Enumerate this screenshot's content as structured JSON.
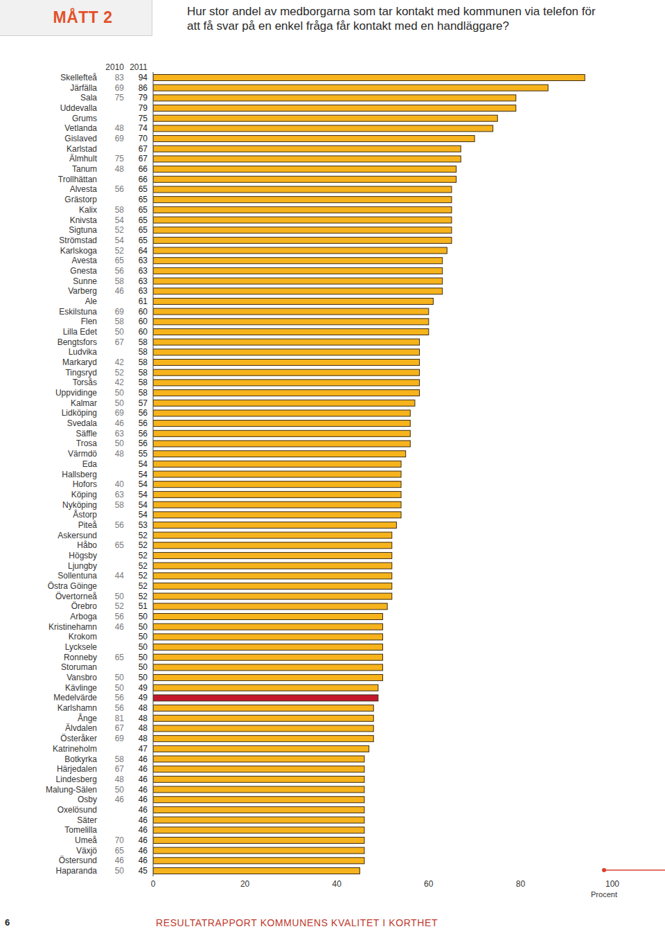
{
  "chart_data": {
    "type": "bar",
    "orientation": "horizontal",
    "title": "Hur stor andel av medborgarna som tar kontakt med kommunen via telefon för att få svar på en enkel fråga får kontakt med en handläggare?",
    "xlabel": "Procent",
    "categories": [
      "Skellefteå",
      "Järfälla",
      "Sala",
      "Uddevalla",
      "Grums",
      "Vetlanda",
      "Gislaved",
      "Karlstad",
      "Älmhult",
      "Tanum",
      "Trollhättan",
      "Alvesta",
      "Grästorp",
      "Kalix",
      "Knivsta",
      "Sigtuna",
      "Strömstad",
      "Karlskoga",
      "Avesta",
      "Gnesta",
      "Sunne",
      "Varberg",
      "Ale",
      "Eskilstuna",
      "Flen",
      "Lilla Edet",
      "Bengtsfors",
      "Ludvika",
      "Markaryd",
      "Tingsryd",
      "Torsås",
      "Uppvidinge",
      "Kalmar",
      "Lidköping",
      "Svedala",
      "Säffle",
      "Trosa",
      "Värmdö",
      "Eda",
      "Hallsberg",
      "Hofors",
      "Köping",
      "Nyköping",
      "Åstorp",
      "Piteå",
      "Askersund",
      "Håbo",
      "Högsby",
      "Ljungby",
      "Sollentuna",
      "Östra Göinge",
      "Övertorneå",
      "Örebro",
      "Arboga",
      "Kristinehamn",
      "Krokom",
      "Lycksele",
      "Ronneby",
      "Storuman",
      "Vansbro",
      "Kävlinge",
      "Medelvärde",
      "Karlshamn",
      "Ånge",
      "Älvdalen",
      "Österåker",
      "Katrineholm",
      "Botkyrka",
      "Härjedalen",
      "Lindesberg",
      "Malung-Sälen",
      "Osby",
      "Oxelösund",
      "Säter",
      "Tomelilla",
      "Umeå",
      "Växjö",
      "Östersund",
      "Haparanda"
    ],
    "series": [
      {
        "name": "2010",
        "type": "text",
        "values": [
          83,
          69,
          75,
          null,
          null,
          48,
          69,
          null,
          75,
          48,
          null,
          56,
          null,
          58,
          54,
          52,
          54,
          52,
          65,
          56,
          58,
          46,
          null,
          69,
          58,
          50,
          67,
          null,
          42,
          52,
          42,
          50,
          50,
          69,
          46,
          63,
          50,
          48,
          null,
          null,
          40,
          63,
          58,
          null,
          56,
          null,
          65,
          null,
          null,
          44,
          null,
          50,
          52,
          56,
          46,
          null,
          null,
          65,
          null,
          50,
          50,
          56,
          56,
          81,
          67,
          69,
          null,
          58,
          67,
          48,
          50,
          46,
          null,
          null,
          null,
          70,
          65,
          46,
          50
        ]
      },
      {
        "name": "2011",
        "type": "bar",
        "values": [
          94,
          86,
          79,
          79,
          75,
          74,
          70,
          67,
          67,
          66,
          66,
          65,
          65,
          65,
          65,
          65,
          65,
          64,
          63,
          63,
          63,
          63,
          61,
          60,
          60,
          60,
          58,
          58,
          58,
          58,
          58,
          58,
          57,
          56,
          56,
          56,
          56,
          55,
          54,
          54,
          54,
          54,
          54,
          54,
          53,
          52,
          52,
          52,
          52,
          52,
          52,
          52,
          51,
          50,
          50,
          50,
          50,
          50,
          50,
          50,
          49,
          49,
          48,
          48,
          48,
          48,
          47,
          46,
          46,
          46,
          46,
          46,
          46,
          46,
          46,
          46,
          46,
          46,
          45
        ],
        "colors": [
          "#f6b31c",
          "#f6b31c",
          "#f6b31c",
          "#f6b31c",
          "#f6b31c",
          "#f6b31c",
          "#f6b31c",
          "#f6b31c",
          "#f6b31c",
          "#f6b31c",
          "#f6b31c",
          "#f6b31c",
          "#f6b31c",
          "#f6b31c",
          "#f6b31c",
          "#f6b31c",
          "#f6b31c",
          "#f6b31c",
          "#f6b31c",
          "#f6b31c",
          "#f6b31c",
          "#f6b31c",
          "#f6b31c",
          "#f6b31c",
          "#f6b31c",
          "#f6b31c",
          "#f6b31c",
          "#f6b31c",
          "#f6b31c",
          "#f6b31c",
          "#f6b31c",
          "#f6b31c",
          "#f6b31c",
          "#f6b31c",
          "#f6b31c",
          "#f6b31c",
          "#f6b31c",
          "#f6b31c",
          "#f6b31c",
          "#f6b31c",
          "#f6b31c",
          "#f6b31c",
          "#f6b31c",
          "#f6b31c",
          "#f6b31c",
          "#f6b31c",
          "#f6b31c",
          "#f6b31c",
          "#f6b31c",
          "#f6b31c",
          "#f6b31c",
          "#f6b31c",
          "#f6b31c",
          "#f6b31c",
          "#f6b31c",
          "#f6b31c",
          "#f6b31c",
          "#f6b31c",
          "#f6b31c",
          "#f6b31c",
          "#f6b31c",
          "#c3182c",
          "#f6b31c",
          "#f6b31c",
          "#f6b31c",
          "#f6b31c",
          "#f6b31c",
          "#f6b31c",
          "#f6b31c",
          "#f6b31c",
          "#f6b31c",
          "#f6b31c",
          "#f6b31c",
          "#f6b31c",
          "#f6b31c",
          "#f6b31c",
          "#f6b31c",
          "#f6b31c",
          "#f6b31c"
        ]
      }
    ],
    "xlim": [
      0,
      100
    ],
    "xticks": [
      0,
      20,
      40,
      60,
      80,
      100
    ],
    "grid": false,
    "data_labels": true
  },
  "page": {
    "badge": "MÅTT 2",
    "page_number": 6,
    "footer": "RESULTATRAPPORT KOMMUNENS KVALITET I KORTHET"
  }
}
